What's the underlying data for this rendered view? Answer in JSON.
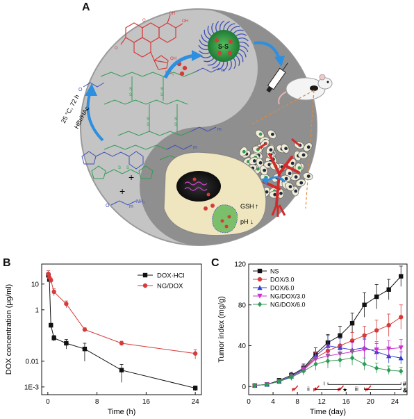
{
  "panel_a": {
    "letter": "A",
    "reaction_condition_1": "25 °C, 72 h",
    "reaction_condition_2": "HBr/HAc",
    "plus": "+",
    "micelle_core_label": "S-S",
    "mpeg_amine_label": "NH₂",
    "subscript_m": "m",
    "gsh_label": "GSH",
    "ph_label": "pH",
    "arrow_up": "↑",
    "arrow_down": "↓",
    "colors": {
      "drug_red": "#d63b3b",
      "polymer_green": "#2f9b54",
      "peg_blue": "#3d4fb8",
      "micelle_green": "#33a345",
      "arrow_blue": "#2d8fe0",
      "outer_circle": "#bfbfbf",
      "yin_dark": "#8a8a8a",
      "cell_fill": "#efe6bf"
    }
  },
  "panel_b": {
    "letter": "B",
    "chart_data": {
      "type": "line",
      "xlabel": "Time (h)",
      "ylabel": "DOX concentration (μg/ml)",
      "yscale": "log",
      "xlim": [
        -1,
        25
      ],
      "ylim": [
        0.0005,
        60
      ],
      "x_ticks": [
        0,
        8,
        16,
        24
      ],
      "y_ticks": [
        {
          "value": 0.001,
          "label": "1E-3"
        },
        {
          "value": 0.01,
          "label": "0.01"
        },
        {
          "value": 1,
          "label": "1"
        },
        {
          "value": 10,
          "label": "10"
        }
      ],
      "legend_position": "top-right",
      "series": [
        {
          "name": "DOX·HCl",
          "color": "#111111",
          "marker": "square",
          "x": [
            0.083,
            0.25,
            0.5,
            1,
            3,
            6,
            12,
            24
          ],
          "y": [
            22,
            15,
            0.25,
            0.08,
            0.05,
            0.03,
            0.0045,
            0.0009
          ],
          "err": [
            6,
            4,
            0.05,
            0.02,
            0.02,
            0.02,
            0.003,
            0.0002
          ]
        },
        {
          "name": "NG/DOX",
          "color": "#d63b3b",
          "marker": "circle",
          "x": [
            0.083,
            0.25,
            0.5,
            1,
            3,
            6,
            12,
            24
          ],
          "y": [
            25,
            18,
            14,
            5,
            1.7,
            0.17,
            0.05,
            0.02
          ],
          "err": [
            8,
            5,
            3,
            1.5,
            0.5,
            0.03,
            0.01,
            0.008
          ]
        }
      ]
    }
  },
  "panel_c": {
    "letter": "C",
    "chart_data": {
      "type": "line",
      "xlabel": "Time (day)",
      "ylabel": "Tumor index (mg/g)",
      "xlim": [
        0,
        26
      ],
      "ylim": [
        -8,
        120
      ],
      "x_ticks": [
        0,
        4,
        8,
        12,
        16,
        20,
        24
      ],
      "y_ticks": [
        0,
        40,
        80,
        120
      ],
      "legend_position": "top-left",
      "x": [
        1,
        3,
        5,
        7,
        9,
        11,
        13,
        15,
        17,
        19,
        21,
        23,
        25
      ],
      "series": [
        {
          "name": "NS",
          "color": "#111111",
          "marker": "square",
          "values": [
            1,
            2,
            6,
            11,
            18,
            32,
            43,
            50,
            62,
            80,
            88,
            95,
            108
          ],
          "err": [
            1,
            1,
            2,
            3,
            4,
            6,
            8,
            9,
            10,
            12,
            12,
            10,
            10
          ]
        },
        {
          "name": "DOX/3.0",
          "color": "#d63b3b",
          "marker": "circle",
          "values": [
            1,
            2,
            5,
            10,
            17,
            28,
            35,
            40,
            45,
            50,
            55,
            60,
            68
          ],
          "err": [
            1,
            1,
            2,
            3,
            4,
            5,
            6,
            7,
            8,
            9,
            10,
            11,
            12
          ]
        },
        {
          "name": "DOX/6.0",
          "color": "#2b3fcf",
          "marker": "triangle",
          "values": [
            1,
            2,
            5,
            10,
            17,
            30,
            40,
            38,
            36,
            38,
            34,
            30,
            28
          ],
          "err": [
            1,
            1,
            2,
            3,
            4,
            8,
            10,
            9,
            8,
            9,
            8,
            7,
            6
          ]
        },
        {
          "name": "NG/DOX/3.0",
          "color": "#cc33cc",
          "marker": "triangle-down",
          "values": [
            1,
            2,
            5,
            9,
            16,
            27,
            30,
            32,
            34,
            36,
            36,
            37,
            38
          ],
          "err": [
            1,
            1,
            2,
            3,
            4,
            7,
            9,
            8,
            9,
            10,
            8,
            8,
            8
          ]
        },
        {
          "name": "NG/DOX/6.0",
          "color": "#2f9b54",
          "marker": "diamond",
          "values": [
            1,
            2,
            5,
            9,
            15,
            22,
            25,
            26,
            28,
            22,
            18,
            16,
            15
          ],
          "err": [
            1,
            1,
            2,
            3,
            4,
            6,
            7,
            7,
            7,
            6,
            5,
            4,
            4
          ]
        }
      ],
      "injection_days": [
        7.5,
        11,
        15,
        19.5
      ],
      "significance": {
        "i": "i",
        "ii": "ii",
        "iii": "iii",
        "star": "★",
        "hash": "#",
        "amp": "&"
      }
    }
  }
}
